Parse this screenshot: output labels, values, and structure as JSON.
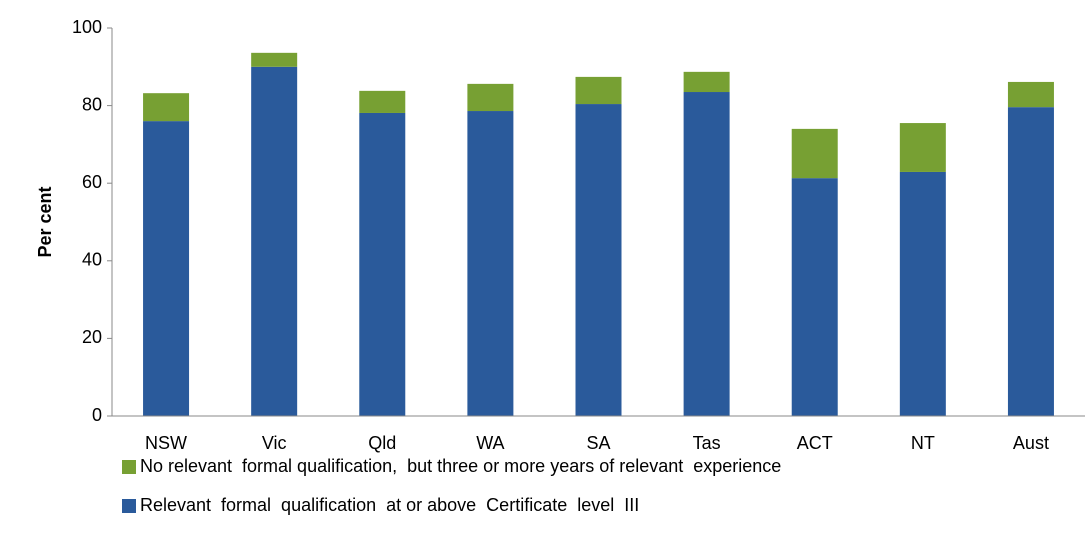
{
  "chart_data": {
    "type": "stacked_bar",
    "y_label": "Per cent",
    "categories": [
      "NSW",
      "Vic",
      "Qld",
      "WA",
      "SA",
      "Tas",
      "ACT",
      "NT",
      "Aust"
    ],
    "series": [
      {
        "name": "No relevant  formal qualification,  but three or more years of relevant  experience",
        "color": "#77a033",
        "values": [
          7.2,
          3.6,
          5.7,
          7.0,
          7.0,
          5.2,
          12.7,
          12.6,
          6.5
        ]
      },
      {
        "name": "Relevant  formal  qualification  at or above  Certificate  level  III",
        "color": "#2a5a9b",
        "values": [
          76.0,
          90.0,
          78.1,
          78.6,
          80.4,
          83.5,
          61.3,
          62.9,
          79.6
        ]
      }
    ],
    "ylim": [
      0,
      100
    ],
    "yticks": [
      0,
      20,
      40,
      60,
      80,
      100
    ],
    "grid": false
  }
}
